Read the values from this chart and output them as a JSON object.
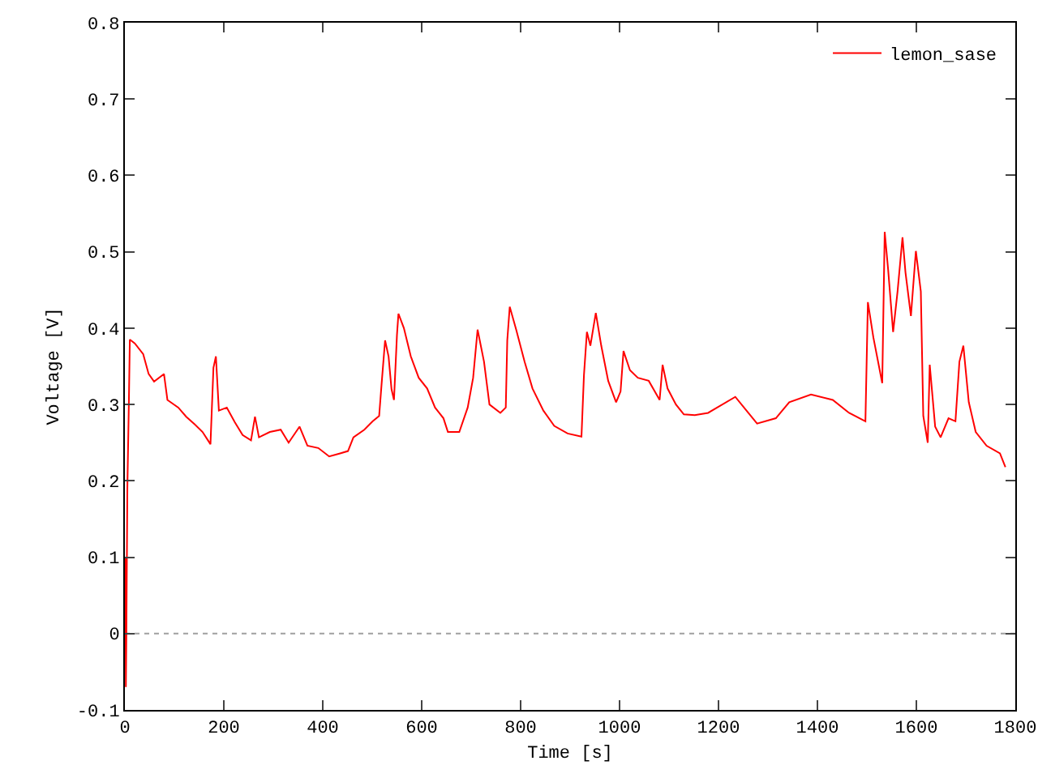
{
  "chart_data": {
    "type": "line",
    "xlabel": "Time [s]",
    "ylabel": "Voltage [V]",
    "xlim": [
      0,
      1800
    ],
    "xticks": [
      0,
      200,
      400,
      600,
      800,
      1000,
      1200,
      1400,
      1600,
      1800
    ],
    "ylim": [
      -0.1,
      0.8
    ],
    "yticks": [
      -0.1,
      0,
      0.1,
      0.2,
      0.3,
      0.4,
      0.5,
      0.6,
      0.7,
      0.8
    ],
    "grid": false,
    "legend": "top right",
    "line_style": "solid",
    "ref_lines": [
      {
        "axis": "y",
        "value": 0,
        "color": "#a0a0a0",
        "line_style": "dotted"
      }
    ],
    "series": [
      {
        "name": "lemon_sase",
        "color": "#ff0000",
        "x": [
          0,
          1,
          2,
          3,
          5,
          8,
          10,
          20,
          37,
          48,
          59,
          79,
          86,
          108,
          124,
          141,
          157,
          168,
          173,
          179,
          184,
          190,
          206,
          222,
          238,
          255,
          263,
          271,
          293,
          315,
          331,
          353,
          369,
          391,
          413,
          435,
          451,
          462,
          484,
          501,
          514,
          519,
          526,
          533,
          539,
          544,
          550,
          553,
          564,
          578,
          594,
          611,
          627,
          644,
          653,
          676,
          693,
          704,
          713,
          726,
          737,
          759,
          770,
          773,
          778,
          791,
          808,
          824,
          846,
          868,
          895,
          923,
          928,
          934,
          941,
          952,
          963,
          977,
          993,
          1002,
          1008,
          1021,
          1037,
          1059,
          1081,
          1087,
          1097,
          1114,
          1130,
          1152,
          1179,
          1234,
          1278,
          1316,
          1343,
          1387,
          1431,
          1464,
          1497,
          1502,
          1513,
          1531,
          1536,
          1543,
          1553,
          1562,
          1572,
          1578,
          1589,
          1599,
          1609,
          1614,
          1623,
          1627,
          1638,
          1649,
          1665,
          1679,
          1687,
          1695,
          1706,
          1720,
          1742,
          1769,
          1780
        ],
        "values": [
          0,
          0.1,
          -0.07,
          0,
          0.19,
          0.3,
          0.385,
          0.38,
          0.366,
          0.34,
          0.33,
          0.34,
          0.306,
          0.296,
          0.284,
          0.274,
          0.264,
          0.253,
          0.248,
          0.348,
          0.363,
          0.292,
          0.296,
          0.277,
          0.26,
          0.253,
          0.284,
          0.257,
          0.264,
          0.267,
          0.25,
          0.271,
          0.246,
          0.243,
          0.232,
          0.236,
          0.239,
          0.257,
          0.267,
          0.278,
          0.285,
          0.327,
          0.384,
          0.363,
          0.32,
          0.306,
          0.391,
          0.419,
          0.4,
          0.363,
          0.335,
          0.321,
          0.296,
          0.282,
          0.264,
          0.264,
          0.296,
          0.335,
          0.398,
          0.356,
          0.3,
          0.289,
          0.296,
          0.384,
          0.428,
          0.398,
          0.356,
          0.321,
          0.292,
          0.272,
          0.262,
          0.258,
          0.338,
          0.395,
          0.377,
          0.42,
          0.377,
          0.331,
          0.303,
          0.317,
          0.37,
          0.345,
          0.335,
          0.331,
          0.306,
          0.352,
          0.321,
          0.3,
          0.287,
          0.286,
          0.289,
          0.31,
          0.275,
          0.282,
          0.303,
          0.313,
          0.306,
          0.289,
          0.278,
          0.434,
          0.388,
          0.328,
          0.526,
          0.476,
          0.395,
          0.448,
          0.519,
          0.473,
          0.416,
          0.501,
          0.448,
          0.285,
          0.25,
          0.352,
          0.271,
          0.257,
          0.282,
          0.278,
          0.356,
          0.377,
          0.303,
          0.264,
          0.246,
          0.236,
          0.218
        ]
      }
    ]
  }
}
